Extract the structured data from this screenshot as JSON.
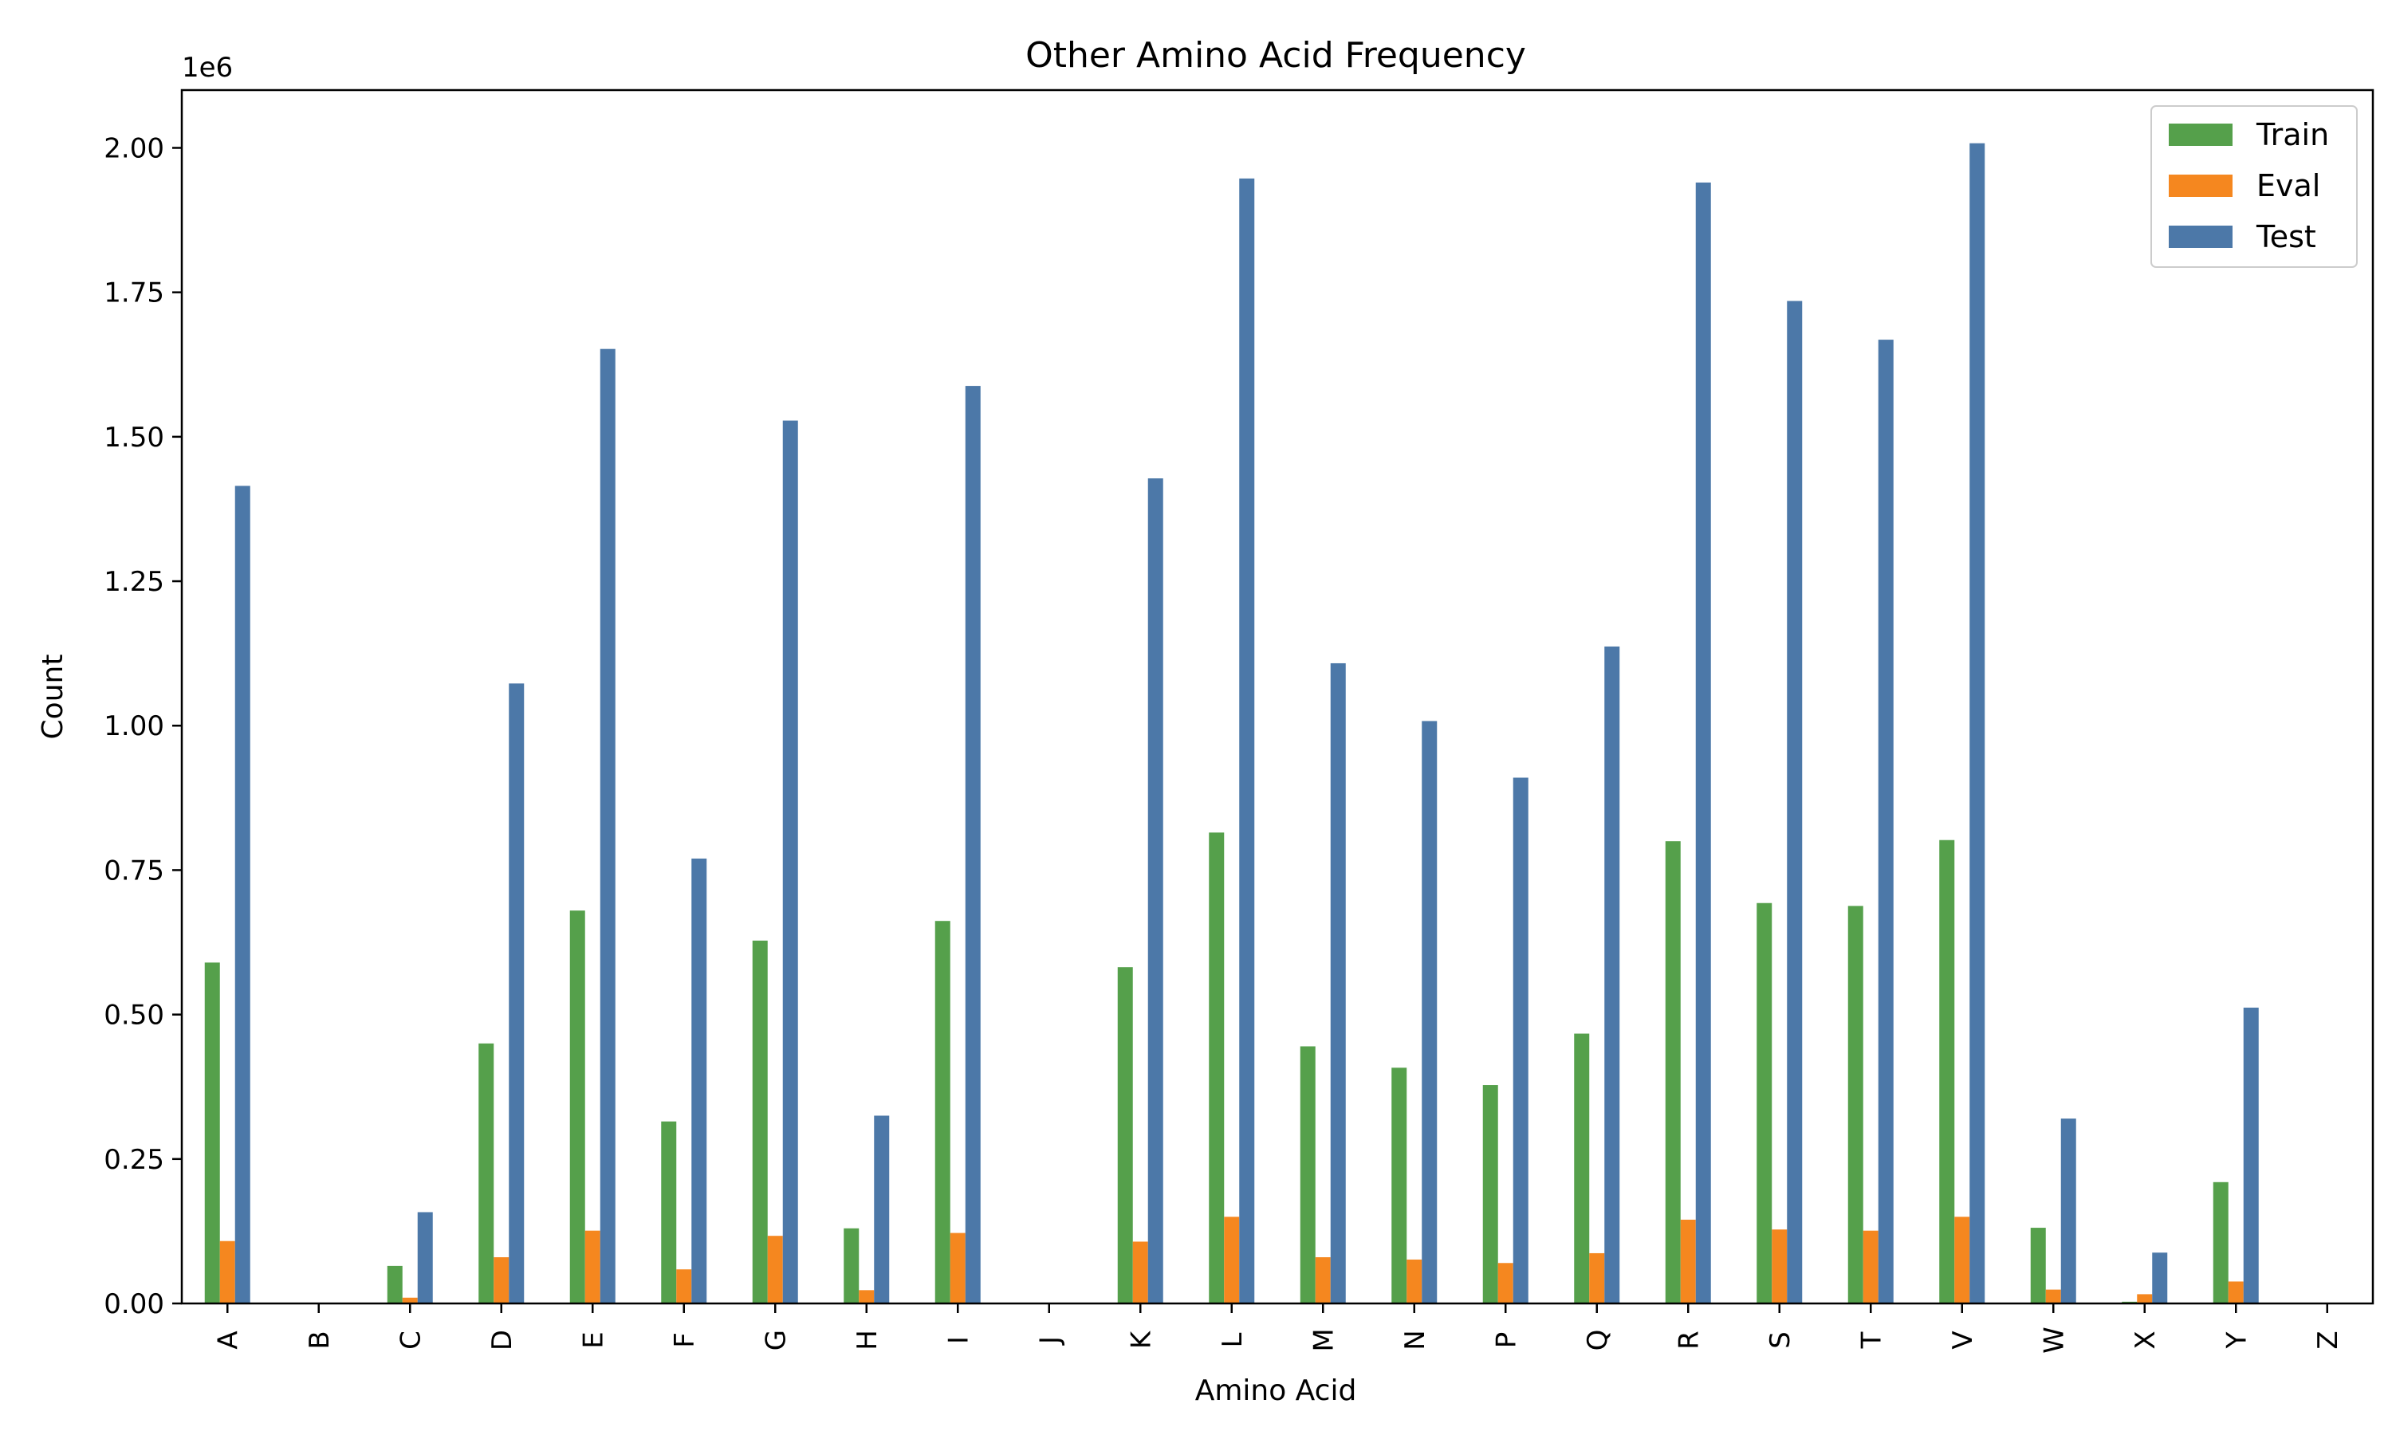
{
  "chart_data": {
    "type": "bar",
    "title": "Other Amino Acid Frequency",
    "xlabel": "Amino Acid",
    "ylabel": "Count",
    "y_offset_label": "1e6",
    "ylim": [
      0,
      2100000
    ],
    "yticks": [
      0,
      250000,
      500000,
      750000,
      1000000,
      1250000,
      1500000,
      1750000,
      2000000
    ],
    "ytick_labels": [
      "0.00",
      "0.25",
      "0.50",
      "0.75",
      "1.00",
      "1.25",
      "1.50",
      "1.75",
      "2.00"
    ],
    "categories": [
      "A",
      "B",
      "C",
      "D",
      "E",
      "F",
      "G",
      "H",
      "I",
      "J",
      "K",
      "L",
      "M",
      "N",
      "P",
      "Q",
      "R",
      "S",
      "T",
      "V",
      "W",
      "X",
      "Y",
      "Z"
    ],
    "legend_position": "top-right",
    "grid": false,
    "series": [
      {
        "name": "Train",
        "color": "#55a04b",
        "values": [
          590000,
          0,
          65000,
          450000,
          680000,
          315000,
          628000,
          130000,
          662000,
          0,
          582000,
          815000,
          445000,
          408000,
          378000,
          467000,
          800000,
          693000,
          688000,
          802000,
          131000,
          3000,
          210000,
          0
        ]
      },
      {
        "name": "Eval",
        "color": "#f5871f",
        "values": [
          108000,
          0,
          10000,
          80000,
          126000,
          59000,
          117000,
          23000,
          122000,
          0,
          107000,
          150000,
          80000,
          76000,
          70000,
          87000,
          145000,
          128000,
          126000,
          150000,
          24000,
          16000,
          38000,
          0
        ]
      },
      {
        "name": "Test",
        "color": "#4c78a8",
        "values": [
          1415000,
          0,
          158000,
          1073000,
          1652000,
          770000,
          1528000,
          325000,
          1588000,
          0,
          1428000,
          1947000,
          1108000,
          1008000,
          910000,
          1137000,
          1940000,
          1735000,
          1668000,
          2008000,
          320000,
          88000,
          512000,
          0
        ]
      }
    ]
  }
}
